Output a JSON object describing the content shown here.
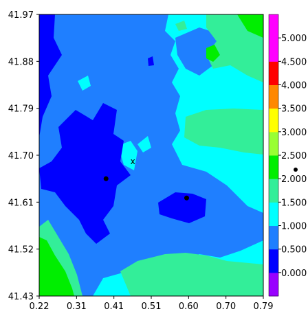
{
  "chart_data": {
    "type": "heatmap",
    "title": "",
    "xlabel": "",
    "ylabel": "",
    "x_ticks": [
      "0.22",
      "0.31",
      "0.41",
      "0.51",
      "0.60",
      "0.70",
      "0.79"
    ],
    "y_ticks": [
      "41.97",
      "41.88",
      "41.79",
      "41.70",
      "41.61",
      "41.52",
      "41.43"
    ],
    "xlim": [
      0.22,
      0.79
    ],
    "ylim": [
      41.43,
      41.97
    ],
    "colorbar": {
      "labels": [
        "0.000",
        "0.500",
        "1.000",
        "1.500",
        "2.000",
        "2.500",
        "3.000",
        "3.500",
        "4.000",
        "4.500",
        "5.000"
      ],
      "colors": [
        "#9900ff",
        "#0000ff",
        "#1f7fff",
        "#00ffff",
        "#33ee99",
        "#00ee00",
        "#99ff33",
        "#ffff00",
        "#ff8800",
        "#ff0000",
        "#ff00ff",
        "#ff00ff"
      ]
    },
    "points": [
      {
        "x": 0.39,
        "y": 41.655,
        "label": ""
      },
      {
        "x": 0.595,
        "y": 41.618,
        "label": ""
      }
    ],
    "annotations": [
      {
        "x": 0.458,
        "y": 41.683,
        "text": "x"
      }
    ],
    "grid": false,
    "legend": "colorbar-right"
  }
}
